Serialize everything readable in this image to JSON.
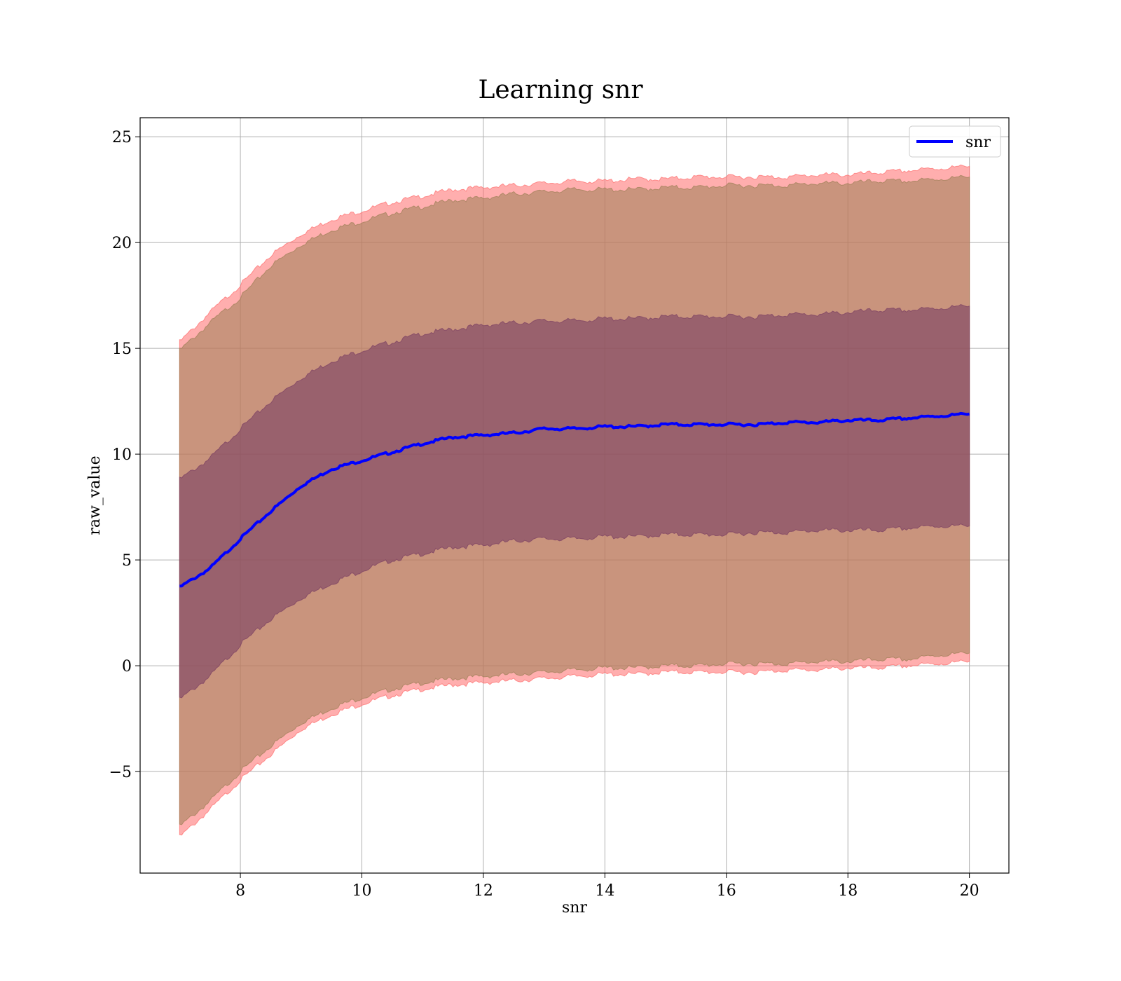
{
  "chart_data": {
    "type": "line",
    "title": "Learning snr",
    "xlabel": "snr",
    "ylabel": "raw_value",
    "xlim": [
      6.35,
      20.65
    ],
    "ylim": [
      -9.8,
      25.9
    ],
    "xticks": [
      8,
      10,
      12,
      14,
      16,
      18,
      20
    ],
    "yticks": [
      -5,
      0,
      5,
      10,
      15,
      20,
      25
    ],
    "ytick_labels": [
      "−5",
      "0",
      "5",
      "10",
      "15",
      "20",
      "25"
    ],
    "grid": true,
    "legend": {
      "position": "top-right",
      "entries": [
        "snr"
      ]
    },
    "x": [
      7.0,
      7.5,
      8.0,
      8.5,
      9.0,
      9.5,
      10.0,
      10.5,
      11.0,
      11.5,
      12.0,
      12.5,
      13.0,
      13.5,
      14.0,
      14.5,
      15.0,
      15.5,
      16.0,
      16.5,
      17.0,
      17.5,
      18.0,
      18.5,
      19.0,
      19.5,
      20.0
    ],
    "series": [
      {
        "name": "snr",
        "color": "#0000ff",
        "values": [
          3.7,
          4.6,
          6.0,
          7.3,
          8.5,
          9.3,
          9.7,
          10.1,
          10.5,
          10.8,
          10.9,
          11.0,
          11.2,
          11.2,
          11.3,
          11.3,
          11.4,
          11.4,
          11.4,
          11.4,
          11.5,
          11.5,
          11.6,
          11.6,
          11.7,
          11.8,
          11.9
        ]
      }
    ],
    "bands": [
      {
        "color": "#ff6b6b",
        "opacity": 0.55,
        "upper": [
          15.3,
          16.7,
          18.0,
          19.4,
          20.4,
          21.1,
          21.5,
          21.9,
          22.2,
          22.5,
          22.6,
          22.7,
          22.8,
          22.9,
          22.9,
          23.0,
          23.0,
          23.1,
          23.1,
          23.1,
          23.1,
          23.2,
          23.2,
          23.3,
          23.4,
          23.5,
          23.6
        ],
        "lower": [
          -8.1,
          -6.8,
          -5.4,
          -4.2,
          -3.0,
          -2.3,
          -1.8,
          -1.4,
          -1.1,
          -0.9,
          -0.8,
          -0.7,
          -0.6,
          -0.5,
          -0.4,
          -0.4,
          -0.3,
          -0.3,
          -0.3,
          -0.3,
          -0.2,
          -0.2,
          -0.1,
          -0.1,
          0.0,
          0.1,
          0.2
        ]
      },
      {
        "color": "#9c7f55",
        "opacity": 0.55,
        "upper": [
          14.9,
          16.2,
          17.4,
          18.9,
          19.9,
          20.6,
          21.0,
          21.4,
          21.7,
          22.0,
          22.1,
          22.3,
          22.4,
          22.5,
          22.5,
          22.5,
          22.6,
          22.6,
          22.7,
          22.7,
          22.7,
          22.8,
          22.8,
          22.9,
          22.9,
          23.0,
          23.1
        ],
        "lower": [
          -7.6,
          -6.4,
          -5.0,
          -3.8,
          -2.7,
          -2.0,
          -1.5,
          -1.1,
          -0.8,
          -0.6,
          -0.5,
          -0.4,
          -0.3,
          -0.2,
          -0.1,
          -0.1,
          0.0,
          0.0,
          0.1,
          0.1,
          0.1,
          0.2,
          0.2,
          0.3,
          0.3,
          0.5,
          0.6
        ]
      },
      {
        "color": "#7a3f63",
        "opacity": 0.6,
        "upper": [
          8.8,
          9.8,
          11.2,
          12.5,
          13.6,
          14.4,
          14.9,
          15.3,
          15.7,
          15.9,
          16.1,
          16.2,
          16.3,
          16.3,
          16.4,
          16.4,
          16.5,
          16.5,
          16.5,
          16.5,
          16.6,
          16.6,
          16.7,
          16.8,
          16.8,
          16.9,
          17.0
        ],
        "lower": [
          -1.6,
          -0.5,
          1.0,
          2.2,
          3.2,
          3.9,
          4.5,
          5.0,
          5.3,
          5.6,
          5.7,
          5.9,
          6.0,
          6.0,
          6.1,
          6.1,
          6.2,
          6.2,
          6.2,
          6.3,
          6.3,
          6.4,
          6.4,
          6.4,
          6.5,
          6.6,
          6.6
        ]
      }
    ]
  }
}
